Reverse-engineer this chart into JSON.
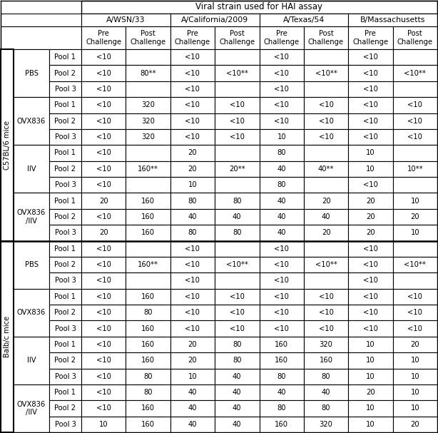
{
  "title_top": "Viral strain used for HAI assay",
  "col_groups": [
    "A/WSN/33",
    "A/California/2009",
    "A/Texas/54",
    "B/Massachusetts"
  ],
  "sub_cols_pre": "Pre",
  "sub_cols_post": "Post",
  "sub_cols_challenge": "Challenge",
  "row_groups": {
    "C57BL/6 mice": {
      "PBS": {
        "Pool 1": [
          "<10",
          "",
          "<10",
          "",
          "<10",
          "",
          "<10",
          ""
        ],
        "Pool 2": [
          "<10",
          "80**",
          "<10",
          "<10**",
          "<10",
          "<10**",
          "<10",
          "<10**"
        ],
        "Pool 3": [
          "<10",
          "",
          "<10",
          "",
          "<10",
          "",
          "<10",
          ""
        ]
      },
      "OVX836": {
        "Pool 1": [
          "<10",
          "320",
          "<10",
          "<10",
          "<10",
          "<10",
          "<10",
          "<10"
        ],
        "Pool 2": [
          "<10",
          "320",
          "<10",
          "<10",
          "<10",
          "<10",
          "<10",
          "<10"
        ],
        "Pool 3": [
          "<10",
          "320",
          "<10",
          "<10",
          "10",
          "<10",
          "<10",
          "<10"
        ]
      },
      "IIV": {
        "Pool 1": [
          "<10",
          "",
          "20",
          "",
          "80",
          "",
          "10",
          ""
        ],
        "Pool 2": [
          "<10",
          "160**",
          "20",
          "20**",
          "40",
          "40**",
          "10",
          "10**"
        ],
        "Pool 3": [
          "<10",
          "",
          "10",
          "",
          "80",
          "",
          "<10",
          ""
        ]
      },
      "OVX836\n/IIV": {
        "Pool 1": [
          "20",
          "160",
          "80",
          "80",
          "40",
          "20",
          "20",
          "10"
        ],
        "Pool 2": [
          "<10",
          "160",
          "40",
          "40",
          "40",
          "40",
          "20",
          "20"
        ],
        "Pool 3": [
          "20",
          "160",
          "80",
          "80",
          "40",
          "20",
          "20",
          "10"
        ]
      }
    },
    "Balb/c mice": {
      "PBS": {
        "Pool 1": [
          "<10",
          "",
          "<10",
          "",
          "<10",
          "",
          "<10",
          ""
        ],
        "Pool 2": [
          "<10",
          "160**",
          "<10",
          "<10**",
          "<10",
          "<10**",
          "<10",
          "<10**"
        ],
        "Pool 3": [
          "<10",
          "",
          "<10",
          "",
          "<10",
          "",
          "<10",
          ""
        ]
      },
      "OVX836": {
        "Pool 1": [
          "<10",
          "160",
          "<10",
          "<10",
          "<10",
          "<10",
          "<10",
          "<10"
        ],
        "Pool 2": [
          "<10",
          "80",
          "<10",
          "<10",
          "<10",
          "<10",
          "<10",
          "<10"
        ],
        "Pool 3": [
          "<10",
          "160",
          "<10",
          "<10",
          "<10",
          "<10",
          "<10",
          "<10"
        ]
      },
      "IIV": {
        "Pool 1": [
          "<10",
          "160",
          "20",
          "80",
          "160",
          "320",
          "10",
          "20"
        ],
        "Pool 2": [
          "<10",
          "160",
          "20",
          "80",
          "160",
          "160",
          "10",
          "10"
        ],
        "Pool 3": [
          "<10",
          "80",
          "10",
          "40",
          "80",
          "80",
          "10",
          "10"
        ]
      },
      "OVX836\n/IIV": {
        "Pool 1": [
          "<10",
          "80",
          "40",
          "40",
          "40",
          "40",
          "20",
          "10"
        ],
        "Pool 2": [
          "<10",
          "160",
          "40",
          "40",
          "80",
          "80",
          "10",
          "10"
        ],
        "Pool 3": [
          "10",
          "160",
          "40",
          "40",
          "160",
          "320",
          "10",
          "20"
        ]
      }
    }
  },
  "background_color": "#ffffff",
  "border_color": "#000000",
  "font_size": 7.2,
  "header_font_size": 7.8,
  "title_font_size": 8.5
}
